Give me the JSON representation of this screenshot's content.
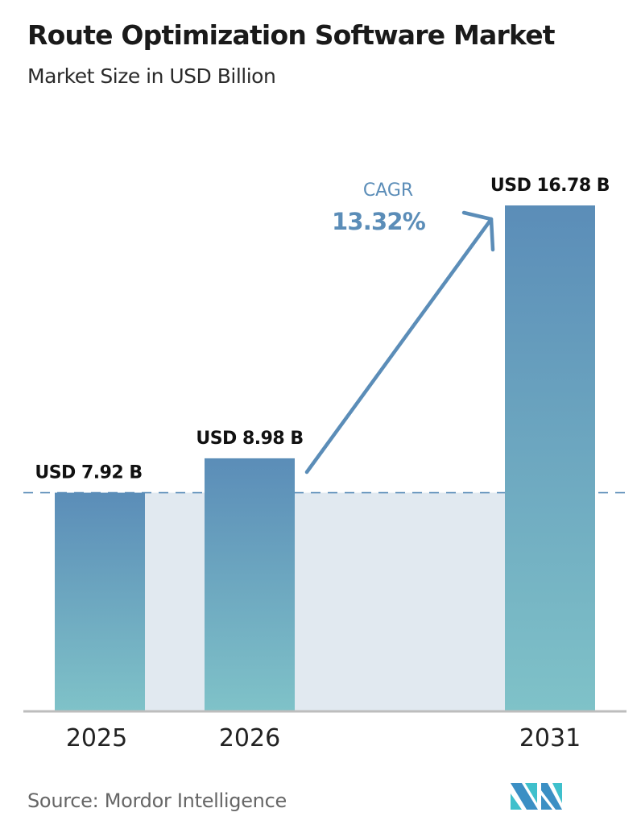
{
  "chart_data": {
    "type": "bar",
    "title": "Route Optimization Software Market",
    "subtitle": "Market Size in USD Billion",
    "categories": [
      "2025",
      "2026",
      "2031"
    ],
    "values": [
      7.92,
      8.98,
      16.78
    ],
    "data_labels": [
      "USD 7.92 B",
      "USD 8.98 B",
      "USD 16.78 B"
    ],
    "ylim": [
      1.2,
      16.78
    ],
    "grid": false,
    "reference_line": {
      "value": 7.92,
      "style": "dashed"
    },
    "annotation": {
      "label": "CAGR",
      "value": "13.32%"
    },
    "colors": {
      "bar_top": "#5b8db8",
      "bar_bottom": "#7fc2c8",
      "band": "#e1e9f0",
      "accent": "#5b8db8",
      "baseline": "#bdbdbd"
    }
  },
  "source": "Source:  Mordor Intelligence",
  "logo": "Mordor Intelligence logo"
}
